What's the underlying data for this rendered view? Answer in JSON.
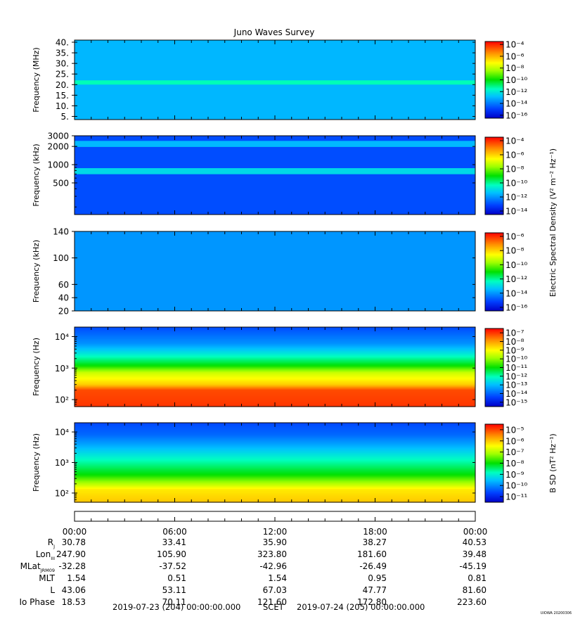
{
  "title": "Juno Waves Survey",
  "chart_data": [
    {
      "type": "heatmap",
      "panel": "LFR high / HFR high",
      "ylabel": "Frequency (MHz)",
      "yscale": "linear",
      "ylim": [
        3.5,
        41
      ],
      "yticks": [
        5,
        10,
        15,
        20,
        25,
        30,
        35,
        40
      ],
      "yticklabels": [
        "5.",
        "10.",
        "15.",
        "20.",
        "25.",
        "30.",
        "35.",
        "40."
      ],
      "colorbar": {
        "scale": "log",
        "exponents": [
          -16,
          -14,
          -12,
          -10,
          -8,
          -6,
          -4
        ],
        "label": ""
      },
      "background_level": -13,
      "bands": [
        {
          "center": 21,
          "width": 2,
          "level": -11.5
        }
      ]
    },
    {
      "type": "heatmap",
      "panel": "HFR",
      "ylabel": "Frequency (kHz)",
      "yscale": "log",
      "ylim": [
        150,
        3000
      ],
      "yticks": [
        500,
        1000,
        2000,
        3000
      ],
      "yticklabels": [
        "500",
        "1000",
        "2000",
        "3000"
      ],
      "colorbar": {
        "scale": "log",
        "exponents": [
          -14,
          -12,
          -10,
          -8,
          -6,
          -4
        ],
        "label": ""
      },
      "background_level": -13,
      "bands": [
        {
          "center": 2200,
          "width": 0.1,
          "level": -11.5
        },
        {
          "center": 780,
          "width": 0.1,
          "level": -11
        }
      ]
    },
    {
      "type": "heatmap",
      "panel": "LFR",
      "ylabel": "Frequency (kHz)",
      "yscale": "linear",
      "ylim": [
        20,
        140
      ],
      "yticks": [
        20,
        40,
        60,
        100,
        140
      ],
      "yticklabels": [
        "20",
        "40",
        "60",
        "100",
        "140"
      ],
      "colorbar": {
        "scale": "log",
        "exponents": [
          -16,
          -14,
          -12,
          -10,
          -8,
          -6
        ],
        "label": "Electric Spectral Density (V² m⁻² Hz⁻¹)"
      },
      "background_level": -14
    },
    {
      "type": "heatmap",
      "panel": "Electric low",
      "ylabel": "Frequency (Hz)",
      "yscale": "log",
      "ylim": [
        60,
        20000
      ],
      "yticks": [
        100,
        1000,
        10000
      ],
      "yticklabels": [
        "10²",
        "10³",
        "10⁴"
      ],
      "colorbar": {
        "scale": "log",
        "exponents": [
          -15,
          -14,
          -13,
          -12,
          -11,
          -10,
          -9,
          -8,
          -7
        ],
        "label": ""
      },
      "profile": [
        {
          "f": 60,
          "level": -7
        },
        {
          "f": 200,
          "level": -7.2
        },
        {
          "f": 300,
          "level": -8.5
        },
        {
          "f": 700,
          "level": -9.5
        },
        {
          "f": 1200,
          "level": -11
        },
        {
          "f": 3000,
          "level": -12.5
        },
        {
          "f": 6000,
          "level": -13.5
        },
        {
          "f": 20000,
          "level": -14.3
        }
      ]
    },
    {
      "type": "heatmap",
      "panel": "Magnetic",
      "ylabel": "Frequency (Hz)",
      "yscale": "log",
      "ylim": [
        50,
        20000
      ],
      "yticks": [
        100,
        1000,
        10000
      ],
      "yticklabels": [
        "10²",
        "10³",
        "10⁴"
      ],
      "colorbar": {
        "scale": "log",
        "exponents": [
          -11,
          -10,
          -9,
          -8,
          -7,
          -6,
          -5
        ],
        "label": "B SD (nT² Hz⁻¹)"
      },
      "profile": [
        {
          "f": 50,
          "level": -6
        },
        {
          "f": 130,
          "level": -6.3
        },
        {
          "f": 200,
          "level": -7
        },
        {
          "f": 400,
          "level": -8
        },
        {
          "f": 1500,
          "level": -9
        },
        {
          "f": 4000,
          "level": -9.8
        },
        {
          "f": 8000,
          "level": -10.3
        },
        {
          "f": 20000,
          "level": -10.6
        }
      ]
    }
  ],
  "time_axis": {
    "ticks": [
      "00:00",
      "06:00",
      "12:00",
      "18:00",
      "00:00"
    ],
    "ephemeris": [
      {
        "label": "R",
        "sub": "J",
        "values": [
          "30.78",
          "33.41",
          "35.90",
          "38.27",
          "40.53"
        ]
      },
      {
        "label": "Lon",
        "sub": "III",
        "values": [
          "247.90",
          "105.90",
          "323.80",
          "181.60",
          "39.48"
        ]
      },
      {
        "label": "MLat",
        "sub": "JRM09",
        "values": [
          "-32.28",
          "-37.52",
          "-42.96",
          "-26.49",
          "-45.19"
        ]
      },
      {
        "label": "MLT",
        "sub": "",
        "values": [
          "1.54",
          "0.51",
          "1.54",
          "0.95",
          "0.81"
        ]
      },
      {
        "label": "L",
        "sub": "",
        "values": [
          "43.06",
          "53.11",
          "67.03",
          "47.77",
          "81.60"
        ]
      },
      {
        "label": "Io Phase",
        "sub": "",
        "values": [
          "18.53",
          "70.11",
          "121.60",
          "172.80",
          "223.60"
        ]
      }
    ],
    "footer_start": "2019-07-23 (204) 00:00:00.000",
    "footer_mid": "SCET",
    "footer_end": "2019-07-24 (205) 00:00:00.000"
  },
  "credit": "UIOWA 20200306"
}
